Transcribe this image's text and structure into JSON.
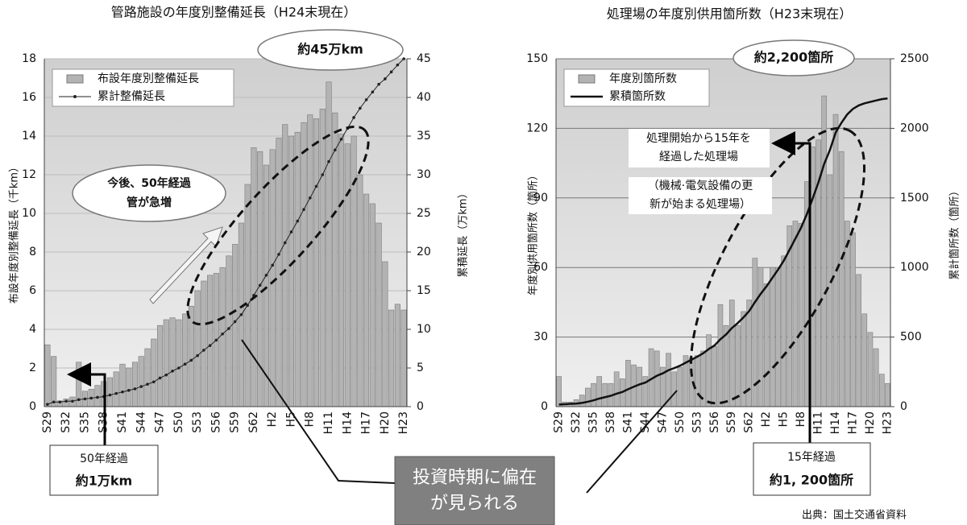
{
  "chart_data": [
    {
      "type": "bar",
      "title": "管路施設の年度別整備延長（H24末現在）",
      "y_label": "布設年度別整備延長（千km）",
      "y2_label": "累積延長（万km）",
      "categories": [
        "S29",
        null,
        null,
        "S32",
        null,
        null,
        "S35",
        null,
        null,
        "S38",
        null,
        null,
        "S41",
        null,
        null,
        "S44",
        null,
        null,
        "S47",
        null,
        null,
        "S50",
        null,
        null,
        "S53",
        null,
        null,
        "S56",
        null,
        null,
        "S59",
        null,
        null,
        "S62",
        null,
        null,
        "H2",
        null,
        null,
        "H5",
        null,
        null,
        "H8",
        null,
        null,
        "H11",
        null,
        null,
        "H14",
        null,
        null,
        "H17",
        null,
        null,
        "H20",
        null,
        null,
        "H23"
      ],
      "series": [
        {
          "name": "布設年度別整備延長",
          "type": "bar",
          "color": "#b3b3b3",
          "values": [
            3.2,
            2.6,
            0.3,
            0.4,
            0.5,
            2.3,
            0.8,
            0.9,
            1.1,
            1.3,
            1.5,
            1.8,
            2.2,
            2.0,
            2.3,
            2.6,
            3.0,
            3.5,
            4.2,
            4.5,
            4.6,
            4.5,
            4.8,
            5.2,
            6.0,
            6.5,
            6.8,
            6.9,
            7.2,
            7.8,
            8.4,
            9.5,
            11.5,
            13.4,
            13.2,
            12.5,
            13.3,
            13.9,
            14.6,
            14.0,
            14.2,
            14.7,
            15.1,
            14.9,
            15.4,
            16.8,
            15.2,
            14.1,
            13.6,
            14.0,
            12.0,
            11.0,
            10.5,
            9.5,
            7.5,
            5.0,
            5.3,
            5.0
          ]
        },
        {
          "name": "累計整備延長",
          "type": "line",
          "axis": "y2",
          "color": "#222222",
          "marker": true,
          "values": [
            0.3,
            0.6,
            0.6,
            0.7,
            0.7,
            0.9,
            1.0,
            1.1,
            1.2,
            1.3,
            1.5,
            1.7,
            1.9,
            2.1,
            2.3,
            2.6,
            2.9,
            3.2,
            3.7,
            4.1,
            4.6,
            5.0,
            5.5,
            6.0,
            6.6,
            7.3,
            7.9,
            8.6,
            9.4,
            10.1,
            11.0,
            11.9,
            13.1,
            14.4,
            15.7,
            17.0,
            18.3,
            19.7,
            21.2,
            22.6,
            24.0,
            25.5,
            27.0,
            28.5,
            30.0,
            31.7,
            33.2,
            34.6,
            36.0,
            37.4,
            38.6,
            39.7,
            40.7,
            41.7,
            42.4,
            43.3,
            44.2,
            45.0
          ]
        }
      ],
      "ylim": [
        0,
        18
      ],
      "yticks": [
        0,
        2,
        4,
        6,
        8,
        10,
        12,
        14,
        16,
        18
      ],
      "y2lim": [
        0,
        45
      ],
      "y2ticks": [
        0,
        5,
        10,
        15,
        20,
        25,
        30,
        35,
        40,
        45
      ],
      "grid": true,
      "total_label": "約45万km",
      "note": [
        "今後、50年経過",
        "管が急増"
      ],
      "box": [
        "50年経過",
        "約1万km"
      ]
    },
    {
      "type": "bar",
      "title": "処理場の年度別供用箇所数（H23末現在）",
      "y_label": "年度別供用箇所数（箇所）",
      "y2_label": "累計箇所数（箇所）",
      "categories": [
        "S29",
        null,
        null,
        "S32",
        null,
        null,
        "S35",
        null,
        null,
        "S38",
        null,
        null,
        "S41",
        null,
        null,
        "S44",
        null,
        null,
        "S47",
        null,
        null,
        "S50",
        null,
        null,
        "S53",
        null,
        null,
        "S56",
        null,
        null,
        "S59",
        null,
        null,
        "S62",
        null,
        null,
        "H2",
        null,
        null,
        "H5",
        null,
        null,
        "H8",
        null,
        null,
        "H11",
        null,
        null,
        "H14",
        null,
        null,
        "H17",
        null,
        null,
        "H20",
        null,
        null,
        "H23"
      ],
      "series": [
        {
          "name": "年度別箇所数",
          "type": "bar",
          "color": "#b3b3b3",
          "values": [
            13,
            2,
            2,
            3,
            5,
            8,
            10,
            13,
            10,
            10,
            15,
            12,
            20,
            18,
            17,
            13,
            25,
            24,
            17,
            23,
            15,
            17,
            22,
            21,
            22,
            24,
            31,
            26,
            44,
            35,
            46,
            35,
            41,
            46,
            64,
            60,
            53,
            60,
            60,
            65,
            78,
            80,
            79,
            97,
            112,
            115,
            134,
            100,
            126,
            110,
            80,
            75,
            57,
            40,
            32,
            25,
            14,
            10
          ]
        },
        {
          "name": "累積箇所数",
          "type": "line",
          "axis": "y2",
          "color": "#111111",
          "marker": false,
          "values": [
            15,
            17,
            20,
            22,
            27,
            35,
            45,
            58,
            68,
            78,
            93,
            105,
            125,
            143,
            160,
            173,
            198,
            222,
            239,
            262,
            277,
            294,
            316,
            337,
            359,
            383,
            414,
            440,
            484,
            519,
            565,
            600,
            641,
            687,
            751,
            811,
            864,
            924,
            984,
            1049,
            1127,
            1207,
            1286,
            1383,
            1495,
            1610,
            1744,
            1844,
            1970,
            2040,
            2100,
            2140,
            2165,
            2180,
            2190,
            2200,
            2210,
            2215
          ]
        }
      ],
      "ylim": [
        0,
        150
      ],
      "yticks": [
        0,
        30,
        60,
        90,
        120,
        150
      ],
      "y2lim": [
        0,
        2500
      ],
      "y2ticks": [
        0,
        500,
        1000,
        1500,
        2000,
        2500
      ],
      "grid": true,
      "total_label": "約2,200箇所",
      "note": [
        "処理開始から15年を",
        "経過した処理場"
      ],
      "note2": [
        "（機械·電気設備の更",
        "新が始まる処理場）"
      ],
      "box": [
        "15年経過",
        "約1, 200箇所"
      ]
    }
  ],
  "callout": [
    "投資時期に偏在",
    "が見られる"
  ],
  "source": "出典：国土交通省資料"
}
